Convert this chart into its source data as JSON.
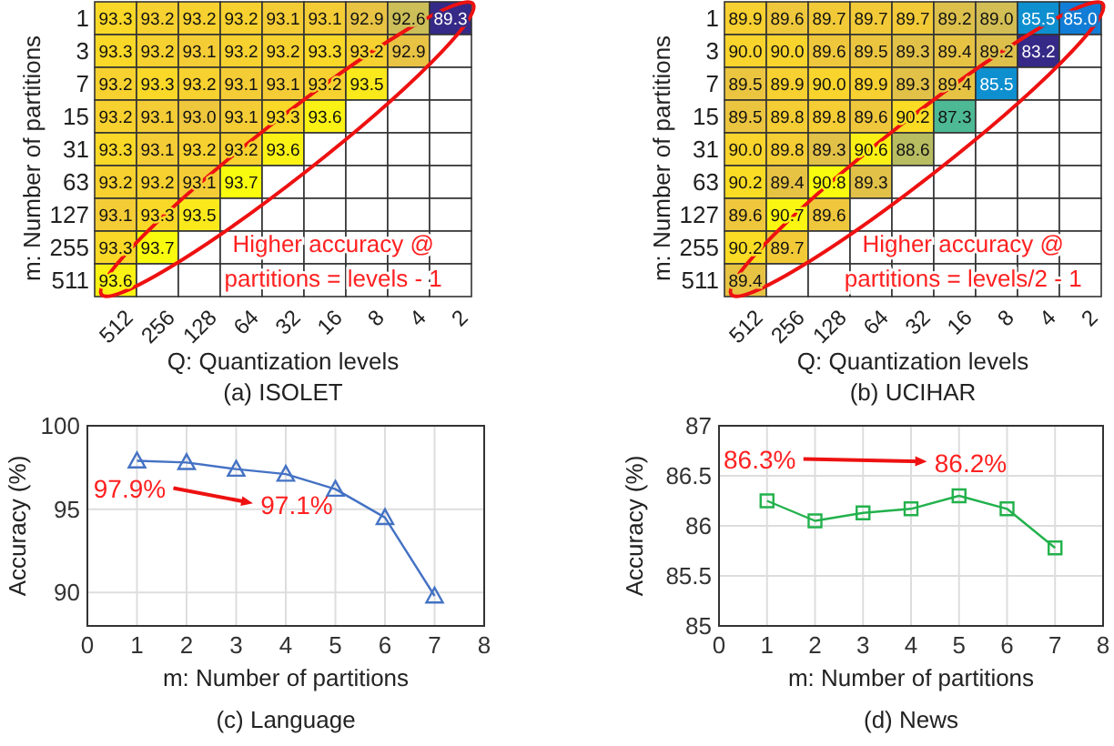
{
  "chart_data": [
    {
      "type": "heatmap",
      "title": "(a) ISOLET",
      "xlabel": "Q: Quantization levels",
      "ylabel": "m: Number of partitions",
      "data_labels": true,
      "categories": [
        "512",
        "256",
        "128",
        "64",
        "32",
        "16",
        "8",
        "4",
        "2"
      ],
      "y_categories": [
        "1",
        "3",
        "7",
        "15",
        "31",
        "63",
        "127",
        "255",
        "511"
      ],
      "cells": [
        [
          93.3,
          93.2,
          93.2,
          93.2,
          93.1,
          93.1,
          92.9,
          92.6,
          89.3
        ],
        [
          93.3,
          93.2,
          93.1,
          93.2,
          93.2,
          93.3,
          93.2,
          92.9,
          null
        ],
        [
          93.2,
          93.3,
          93.2,
          93.1,
          93.1,
          93.2,
          93.5,
          null,
          null
        ],
        [
          93.2,
          93.1,
          93.0,
          93.1,
          93.3,
          93.6,
          null,
          null,
          null
        ],
        [
          93.3,
          93.1,
          93.2,
          93.2,
          93.6,
          null,
          null,
          null,
          null
        ],
        [
          93.2,
          93.2,
          93.1,
          93.7,
          null,
          null,
          null,
          null,
          null
        ],
        [
          93.1,
          93.3,
          93.5,
          null,
          null,
          null,
          null,
          null,
          null
        ],
        [
          93.3,
          93.7,
          null,
          null,
          null,
          null,
          null,
          null,
          null
        ],
        [
          93.6,
          null,
          null,
          null,
          null,
          null,
          null,
          null,
          null
        ]
      ],
      "cell_labels": [
        [
          "93.3",
          "93.2",
          "93.2",
          "93.2",
          "93.1",
          "93.1",
          "92.9",
          "92.6",
          "89.3"
        ],
        [
          "93.3",
          "93.2",
          "93.1",
          "93.2",
          "93.2",
          "93.3",
          "93.2",
          "92.9",
          null
        ],
        [
          "93.2",
          "93.3",
          "93.2",
          "93.1",
          "93.1",
          "93.2",
          "93.5",
          null,
          null
        ],
        [
          "93.2",
          "93.1",
          "93.0",
          "93.1",
          "93.3",
          "93.6",
          null,
          null,
          null
        ],
        [
          "93.3",
          "93.1",
          "93.2",
          "93.2",
          "93.6",
          null,
          null,
          null,
          null
        ],
        [
          "93.2",
          "93.2",
          "93.1",
          "93.7",
          null,
          null,
          null,
          null,
          null
        ],
        [
          "93.1",
          "93.3",
          "93.5",
          null,
          null,
          null,
          null,
          null,
          null
        ],
        [
          "93.3",
          "93.7",
          null,
          null,
          null,
          null,
          null,
          null,
          null
        ],
        [
          "93.6",
          null,
          null,
          null,
          null,
          null,
          null,
          null,
          null
        ]
      ],
      "annotations": [
        "Higher accuracy @\npartitions = levels - 1"
      ]
    },
    {
      "type": "heatmap",
      "title": "(b) UCIHAR",
      "xlabel": "Q: Quantization levels",
      "ylabel": "m: Number of partitions",
      "data_labels": true,
      "categories": [
        "512",
        "256",
        "128",
        "64",
        "32",
        "16",
        "8",
        "4",
        "2"
      ],
      "y_categories": [
        "1",
        "3",
        "7",
        "15",
        "31",
        "63",
        "127",
        "255",
        "511"
      ],
      "cells": [
        [
          89.9,
          89.6,
          89.7,
          89.7,
          89.7,
          89.2,
          89.0,
          85.5,
          85.0
        ],
        [
          90.0,
          90.0,
          89.6,
          89.5,
          89.3,
          89.4,
          89.2,
          83.2,
          null
        ],
        [
          89.5,
          89.9,
          90.0,
          89.9,
          89.3,
          89.4,
          85.5,
          null,
          null
        ],
        [
          89.5,
          89.8,
          89.8,
          89.6,
          90.2,
          87.3,
          null,
          null,
          null
        ],
        [
          90.0,
          89.8,
          89.3,
          90.6,
          88.6,
          null,
          null,
          null,
          null
        ],
        [
          90.2,
          89.4,
          90.8,
          89.3,
          null,
          null,
          null,
          null,
          null
        ],
        [
          89.6,
          90.7,
          89.6,
          null,
          null,
          null,
          null,
          null,
          null
        ],
        [
          90.2,
          89.7,
          null,
          null,
          null,
          null,
          null,
          null,
          null
        ],
        [
          89.4,
          null,
          null,
          null,
          null,
          null,
          null,
          null,
          null
        ]
      ],
      "cell_labels": [
        [
          "89.9",
          "89.6",
          "89.7",
          "89.7",
          "89.7",
          "89.2",
          "89.0",
          "85.5",
          "85.0"
        ],
        [
          "90.0",
          "90.0",
          "89.6",
          "89.5",
          "89.3",
          "89.4",
          "89.2",
          "83.2",
          null
        ],
        [
          "89.5",
          "89.9",
          "90.0",
          "89.9",
          "89.3",
          "89.4",
          "85.5",
          null,
          null
        ],
        [
          "89.5",
          "89.8",
          "89.8",
          "89.6",
          "90.2",
          "87.3",
          null,
          null,
          null
        ],
        [
          "90.0",
          "89.8",
          "89.3",
          "90.6",
          "88.6",
          null,
          null,
          null,
          null
        ],
        [
          "90.2",
          "89.4",
          "90.8",
          "89.3",
          null,
          null,
          null,
          null,
          null
        ],
        [
          "89.6",
          "90.7",
          "89.6",
          null,
          null,
          null,
          null,
          null,
          null
        ],
        [
          "90.2",
          "89.7",
          null,
          null,
          null,
          null,
          null,
          null,
          null
        ],
        [
          "89.4",
          null,
          null,
          null,
          null,
          null,
          null,
          null,
          null
        ]
      ],
      "annotations": [
        "Higher accuracy @\npartitions = levels/2 - 1"
      ]
    },
    {
      "type": "line",
      "title": "(c) Language",
      "xlabel": "m: Number of partitions",
      "ylabel": "Accuracy (%)",
      "x": [
        1,
        2,
        3,
        4,
        5,
        6,
        7
      ],
      "series": [
        {
          "color": "#4472c4",
          "values": [
            97.9,
            97.8,
            97.4,
            97.1,
            96.2,
            94.5,
            89.8
          ]
        }
      ],
      "xlim": [
        0,
        8
      ],
      "xticks": [
        0,
        1,
        2,
        3,
        4,
        5,
        6,
        7,
        8
      ],
      "ylim": [
        88,
        100
      ],
      "yticks": [
        90,
        95,
        100
      ],
      "grid": true,
      "marker": "triangle",
      "annotations": [
        {
          "text": "97.9%",
          "x": 1,
          "y": 97.9
        },
        {
          "text": "97.1%",
          "x": 4,
          "y": 97.1
        }
      ]
    },
    {
      "type": "line",
      "title": "(d) News",
      "xlabel": "m: Number of partitions",
      "ylabel": "Accuracy (%)",
      "x": [
        1,
        2,
        3,
        4,
        5,
        6,
        7
      ],
      "series": [
        {
          "color": "#22b14c",
          "values": [
            86.25,
            86.05,
            86.13,
            86.17,
            86.3,
            86.17,
            85.78
          ]
        }
      ],
      "xlim": [
        0,
        8
      ],
      "xticks": [
        0,
        1,
        2,
        3,
        4,
        5,
        6,
        7,
        8
      ],
      "ylim": [
        85,
        87
      ],
      "yticks": [
        85,
        85.5,
        86,
        86.5,
        87
      ],
      "grid": true,
      "marker": "square",
      "annotations": [
        {
          "text": "86.3%",
          "x": 1,
          "y": 86.25
        },
        {
          "text": "86.2%",
          "x": 6,
          "y": 86.17
        }
      ]
    }
  ]
}
